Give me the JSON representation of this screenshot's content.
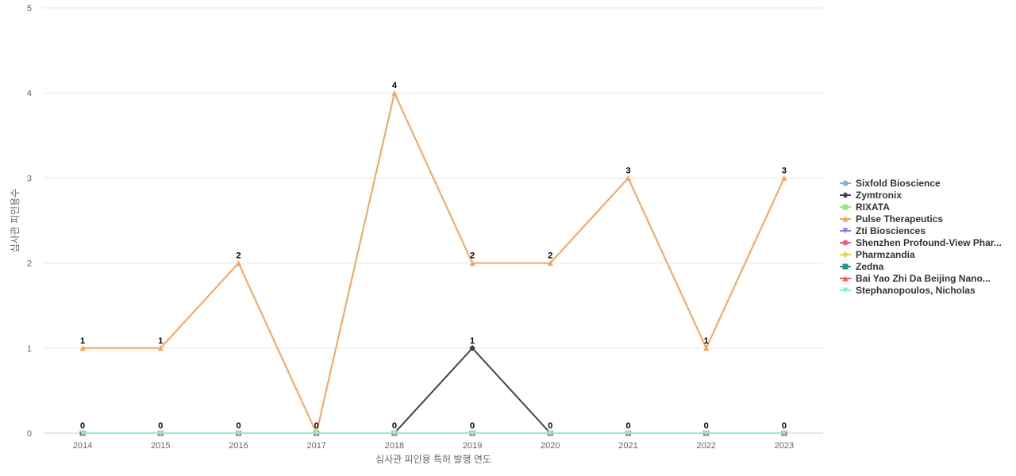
{
  "chart_data": {
    "type": "line",
    "xlabel": "심사관 피인용 특허 발행 연도",
    "ylabel": "심사관 피인용수",
    "ylim": [
      0,
      5
    ],
    "yticks": [
      0,
      1,
      2,
      3,
      4,
      5
    ],
    "categories": [
      "2014",
      "2015",
      "2016",
      "2017",
      "2018",
      "2019",
      "2020",
      "2021",
      "2022",
      "2023"
    ],
    "legend_position": "right",
    "grid": true,
    "series": [
      {
        "name": "Sixfold Bioscience",
        "color": "#7cb5ec",
        "marker": "circle",
        "values": [
          0,
          0,
          0,
          0,
          0,
          0,
          0,
          0,
          0,
          0
        ],
        "show_labels": false
      },
      {
        "name": "Zymtronix",
        "color": "#434348",
        "marker": "diamond",
        "values": [
          0,
          0,
          0,
          0,
          0,
          1,
          0,
          0,
          0,
          0
        ],
        "show_labels": false
      },
      {
        "name": "RIXATA",
        "color": "#90ed7d",
        "marker": "square",
        "values": [
          0,
          0,
          0,
          0,
          0,
          0,
          0,
          0,
          0,
          0
        ],
        "show_labels": false
      },
      {
        "name": "Pulse Therapeutics",
        "color": "#f7a35c",
        "marker": "triangle",
        "values": [
          1,
          1,
          2,
          0,
          4,
          2,
          2,
          3,
          1,
          3
        ],
        "show_labels": false
      },
      {
        "name": "Zti Biosciences",
        "color": "#8085e9",
        "marker": "triangle-down",
        "values": [
          0,
          0,
          0,
          0,
          0,
          0,
          0,
          0,
          0,
          0
        ],
        "show_labels": false
      },
      {
        "name": "Shenzhen Profound-View Phar...",
        "color": "#f15c80",
        "marker": "circle",
        "values": [
          0,
          0,
          0,
          0,
          0,
          0,
          0,
          0,
          0,
          0
        ],
        "show_labels": false
      },
      {
        "name": "Pharmzandia",
        "color": "#e4d354",
        "marker": "diamond",
        "values": [
          0,
          0,
          0,
          0,
          0,
          0,
          0,
          0,
          0,
          0
        ],
        "show_labels": false
      },
      {
        "name": "Zedna",
        "color": "#2b908f",
        "marker": "square",
        "values": [
          0,
          0,
          0,
          0,
          0,
          0,
          0,
          0,
          0,
          0
        ],
        "show_labels": false
      },
      {
        "name": "Bai Yao Zhi Da Beijing Nano...",
        "color": "#f45b5b",
        "marker": "triangle",
        "values": [
          0,
          0,
          0,
          0,
          0,
          0,
          0,
          0,
          0,
          0
        ],
        "show_labels": false
      },
      {
        "name": "Stephanopoulos, Nicholas",
        "color": "#91e8e1",
        "marker": "triangle-down",
        "values": [
          0,
          0,
          0,
          0,
          0,
          0,
          0,
          0,
          0,
          0
        ],
        "show_labels": false
      }
    ],
    "data_labels": [
      {
        "x": "2014",
        "value": 1
      },
      {
        "x": "2014",
        "value": 0
      },
      {
        "x": "2015",
        "value": 1
      },
      {
        "x": "2015",
        "value": 0
      },
      {
        "x": "2016",
        "value": 2
      },
      {
        "x": "2016",
        "value": 0
      },
      {
        "x": "2017",
        "value": 0
      },
      {
        "x": "2018",
        "value": 4
      },
      {
        "x": "2018",
        "value": 0
      },
      {
        "x": "2019",
        "value": 2
      },
      {
        "x": "2019",
        "value": 1
      },
      {
        "x": "2019",
        "value": 0
      },
      {
        "x": "2020",
        "value": 2
      },
      {
        "x": "2020",
        "value": 0
      },
      {
        "x": "2021",
        "value": 3
      },
      {
        "x": "2021",
        "value": 0
      },
      {
        "x": "2022",
        "value": 1
      },
      {
        "x": "2022",
        "value": 0
      },
      {
        "x": "2023",
        "value": 3
      },
      {
        "x": "2023",
        "value": 0
      }
    ]
  }
}
